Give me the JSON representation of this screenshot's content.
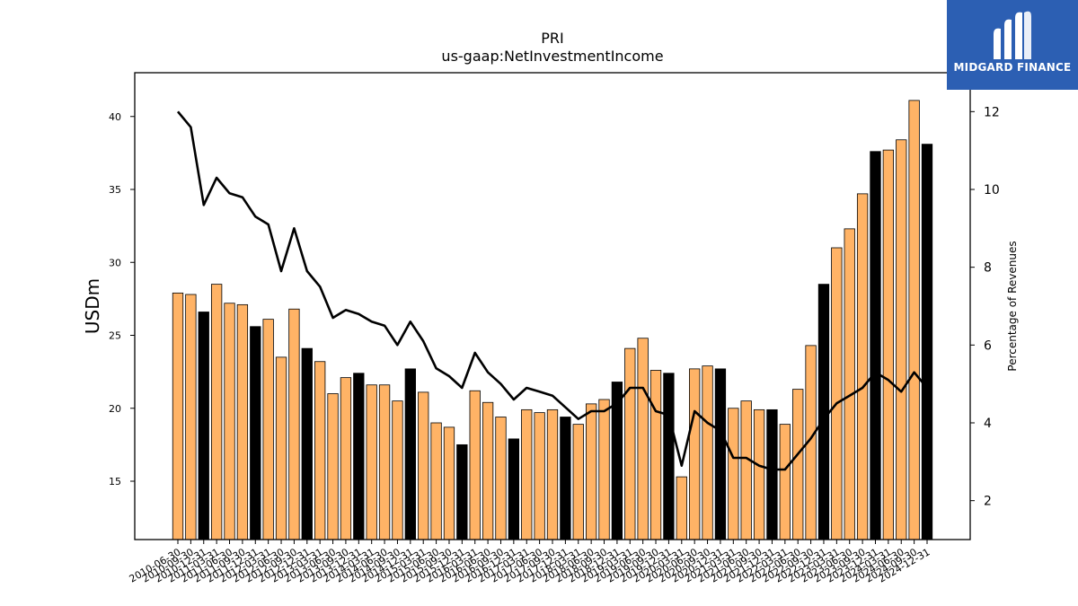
{
  "chart_data": {
    "type": "bar",
    "title": "PRI",
    "subtitle": "us-gaap:NetInvestmentIncome",
    "ylabel": "USDm",
    "y2label": "Percentage of Revenues",
    "ylim": [
      11,
      43
    ],
    "y2lim": [
      1,
      13
    ],
    "yticks": [
      15,
      20,
      25,
      30,
      35,
      40
    ],
    "y2ticks": [
      2,
      4,
      6,
      8,
      10,
      12
    ],
    "categories": [
      "2010-06-30",
      "2010-09-30",
      "2010-12-31",
      "2011-03-31",
      "2011-06-30",
      "2011-09-30",
      "2011-12-31",
      "2012-03-31",
      "2012-06-30",
      "2012-09-30",
      "2012-12-31",
      "2013-03-31",
      "2013-06-30",
      "2013-09-30",
      "2013-12-31",
      "2014-03-31",
      "2014-06-30",
      "2014-09-30",
      "2014-12-31",
      "2015-03-31",
      "2015-06-30",
      "2015-09-30",
      "2015-12-31",
      "2016-03-31",
      "2016-06-30",
      "2016-09-30",
      "2016-12-31",
      "2017-03-31",
      "2017-06-30",
      "2017-09-30",
      "2017-12-31",
      "2018-03-31",
      "2018-06-30",
      "2018-09-30",
      "2018-12-31",
      "2019-03-31",
      "2019-06-30",
      "2019-09-30",
      "2019-12-31",
      "2020-03-31",
      "2020-06-30",
      "2020-09-30",
      "2020-12-31",
      "2021-03-31",
      "2021-06-30",
      "2021-09-30",
      "2021-12-31",
      "2022-03-31",
      "2022-06-30",
      "2022-09-30",
      "2022-12-31",
      "2023-03-31",
      "2023-06-30",
      "2023-09-30",
      "2023-12-31",
      "2024-03-31",
      "2024-06-30",
      "2024-09-30",
      "2024-12-31"
    ],
    "series": [
      {
        "type": "bar",
        "values": [
          27.9,
          27.8,
          26.6,
          28.5,
          27.2,
          27.1,
          25.6,
          26.1,
          23.5,
          26.8,
          24.1,
          23.2,
          21.0,
          22.1,
          22.4,
          21.6,
          21.6,
          20.5,
          22.7,
          21.1,
          19.0,
          18.7,
          17.5,
          21.2,
          20.4,
          19.4,
          17.9,
          19.9,
          19.7,
          19.9,
          19.4,
          18.9,
          20.3,
          20.6,
          21.8,
          24.1,
          24.8,
          22.6,
          22.4,
          15.3,
          22.7,
          22.9,
          22.7,
          20.0,
          20.5,
          19.9,
          19.9,
          18.9,
          21.3,
          24.3,
          28.5,
          31.0,
          32.3,
          34.7,
          37.6,
          37.7,
          38.4,
          41.1,
          38.1
        ],
        "highlight": [
          false,
          false,
          true,
          false,
          false,
          false,
          true,
          false,
          false,
          false,
          true,
          false,
          false,
          false,
          true,
          false,
          false,
          false,
          true,
          false,
          false,
          false,
          true,
          false,
          false,
          false,
          true,
          false,
          false,
          false,
          true,
          false,
          false,
          false,
          true,
          false,
          false,
          false,
          true,
          false,
          false,
          false,
          true,
          false,
          false,
          false,
          true,
          false,
          false,
          false,
          true,
          false,
          false,
          false,
          true,
          false,
          false,
          false,
          true
        ]
      },
      {
        "type": "line",
        "axis": "right",
        "values": [
          12.0,
          11.6,
          9.6,
          10.3,
          9.9,
          9.8,
          9.3,
          9.1,
          7.9,
          9.0,
          7.9,
          7.5,
          6.7,
          6.9,
          6.8,
          6.6,
          6.5,
          6.0,
          6.6,
          6.1,
          5.4,
          5.2,
          4.9,
          5.8,
          5.3,
          5.0,
          4.6,
          4.9,
          4.8,
          4.7,
          4.4,
          4.1,
          4.3,
          4.3,
          4.5,
          4.9,
          4.9,
          4.3,
          4.2,
          2.9,
          4.3,
          4.0,
          3.8,
          3.1,
          3.1,
          2.9,
          2.8,
          2.8,
          3.2,
          3.6,
          4.1,
          4.5,
          4.7,
          4.9,
          5.3,
          5.1,
          4.8,
          5.3,
          4.9
        ]
      }
    ],
    "colors": {
      "bar": "#ffb366",
      "bar_highlight": "#000000",
      "line": "#000000"
    }
  },
  "logo": {
    "text": "MIDGARD FINANCE",
    "background": "#2c5fb3"
  }
}
